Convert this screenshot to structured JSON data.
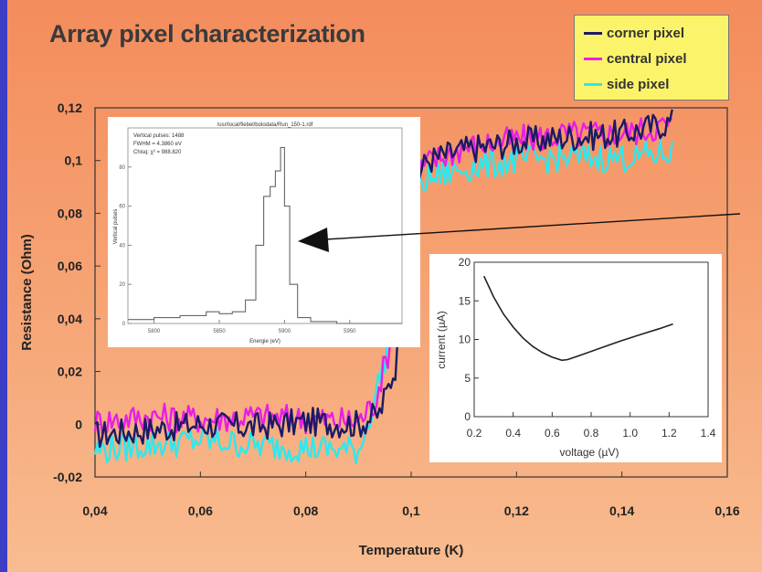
{
  "title": "Array pixel characterization",
  "colors": {
    "corner": "#1c1a64",
    "central": "#e81ee6",
    "side": "#2ee8ee",
    "legend_bg": "#fbf46a",
    "slide_border": "#3c3ec6"
  },
  "chart_data": [
    {
      "type": "line",
      "title": "",
      "xlabel": "Temperature (K)",
      "ylabel": "Resistance (Ohm)",
      "xlim": [
        0.04,
        0.16
      ],
      "ylim": [
        -0.02,
        0.12
      ],
      "xticks": [
        "0,04",
        "0,06",
        "0,08",
        "0,1",
        "0,12",
        "0,14",
        "0,16"
      ],
      "yticks": [
        "-0,02",
        "0",
        "0,02",
        "0,04",
        "0,06",
        "0,08",
        "0,1",
        "0,12"
      ],
      "legend_position": "top-right",
      "series": [
        {
          "name": "corner pixel",
          "x": [
            0.04,
            0.05,
            0.06,
            0.07,
            0.08,
            0.09,
            0.094,
            0.097,
            0.099,
            0.1,
            0.101,
            0.103,
            0.11,
            0.12,
            0.13,
            0.14,
            0.15
          ],
          "y": [
            -0.004,
            -0.002,
            0.0,
            -0.001,
            0.001,
            0.0,
            0.004,
            0.022,
            0.06,
            0.082,
            0.093,
            0.1,
            0.104,
            0.107,
            0.109,
            0.11,
            0.115
          ]
        },
        {
          "name": "central pixel",
          "x": [
            0.04,
            0.05,
            0.06,
            0.07,
            0.08,
            0.09,
            0.093,
            0.096,
            0.098,
            0.1,
            0.101,
            0.103,
            0.11,
            0.12,
            0.13,
            0.14,
            0.15
          ],
          "y": [
            0.001,
            0.003,
            0.002,
            0.003,
            0.002,
            0.001,
            0.008,
            0.03,
            0.062,
            0.085,
            0.094,
            0.099,
            0.105,
            0.108,
            0.11,
            0.11,
            0.114
          ]
        },
        {
          "name": "side pixel",
          "x": [
            0.04,
            0.05,
            0.06,
            0.07,
            0.08,
            0.09,
            0.092,
            0.095,
            0.097,
            0.099,
            0.1,
            0.102,
            0.11,
            0.12,
            0.13,
            0.14,
            0.15
          ],
          "y": [
            -0.01,
            -0.008,
            -0.006,
            -0.008,
            -0.009,
            -0.01,
            0.002,
            0.025,
            0.055,
            0.075,
            0.085,
            0.092,
            0.097,
            0.1,
            0.101,
            0.101,
            0.103
          ]
        }
      ]
    },
    {
      "type": "line",
      "title": "/usr/local/fiebel/bolodata/Run_150-1.rdf",
      "info_lines": [
        "Vertical pulses: 1488",
        "FWHM = 4.3860 eV",
        "Chisq: χ² = 988.820"
      ],
      "xlabel": "Energie (eV)",
      "ylabel": "Vertical pulses",
      "xticks": [
        "5800",
        "5850",
        "5900",
        "5950"
      ],
      "yticks": [
        "0",
        "20",
        "40",
        "60",
        "80"
      ],
      "series": [
        {
          "name": "",
          "x": [
            5780,
            5800,
            5820,
            5840,
            5850,
            5860,
            5870,
            5878,
            5884,
            5889,
            5893,
            5897,
            5900,
            5904,
            5910,
            5920,
            5940,
            5960,
            5990
          ],
          "y": [
            2,
            3,
            4,
            6,
            5,
            6,
            12,
            40,
            65,
            70,
            78,
            90,
            60,
            20,
            3,
            1,
            0,
            0,
            0
          ]
        }
      ]
    },
    {
      "type": "line",
      "title": "",
      "xlabel": "voltage (µV)",
      "ylabel": "current (µA)",
      "xlim": [
        0.2,
        1.4
      ],
      "ylim": [
        0,
        20
      ],
      "xticks": [
        "0.2",
        "0.4",
        "0.6",
        "0.8",
        "1.0",
        "1.2",
        "1.4"
      ],
      "yticks": [
        "0",
        "5",
        "10",
        "15",
        "20"
      ],
      "series": [
        {
          "name": "",
          "x": [
            0.25,
            0.3,
            0.35,
            0.4,
            0.45,
            0.5,
            0.55,
            0.6,
            0.65,
            0.68,
            0.75,
            0.85,
            0.95,
            1.05,
            1.15,
            1.22
          ],
          "y": [
            18.2,
            15.5,
            13.3,
            11.6,
            10.2,
            9.1,
            8.3,
            7.7,
            7.3,
            7.4,
            8.0,
            8.9,
            9.8,
            10.6,
            11.4,
            12.0
          ]
        }
      ]
    }
  ]
}
